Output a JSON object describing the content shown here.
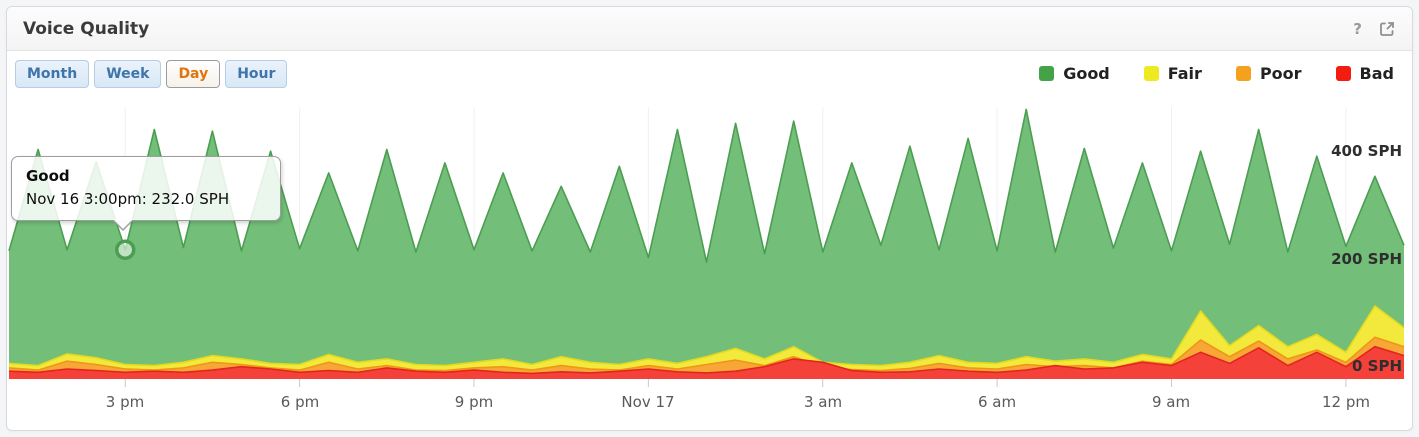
{
  "window": {
    "title": "Voice Quality",
    "help_icon": "?",
    "export_icon": "open-in-new-window"
  },
  "toolbar": {
    "buttons": [
      {
        "label": "Month",
        "selected": false
      },
      {
        "label": "Week",
        "selected": false
      },
      {
        "label": "Day",
        "selected": true
      },
      {
        "label": "Hour",
        "selected": false
      }
    ]
  },
  "tooltip": {
    "series": "Good",
    "text": "Nov 16 3:00pm: 232.0 SPH"
  },
  "chart_data": {
    "type": "area",
    "title": "Voice Quality",
    "unit": "SPH",
    "x_span": "Nov 16 1:00pm to Nov 17 1:00pm, 30-minute intervals",
    "legend_position": "top-right",
    "grid": "faint vertical lines at 3-hour ticks",
    "xaxis": {
      "labels": [
        "3 pm",
        "6 pm",
        "9 pm",
        "Nov 17",
        "3 am",
        "6 am",
        "9 am",
        "12 pm"
      ],
      "tick_indices": [
        4,
        10,
        16,
        22,
        28,
        34,
        40,
        46
      ]
    },
    "yaxis": {
      "labels": [
        "400 SPH",
        "200 SPH",
        "0 SPH"
      ],
      "values": [
        400,
        200,
        0
      ],
      "min": 0,
      "max": 500
    },
    "marker": {
      "series": "Good",
      "index": 4,
      "value": 232.0,
      "time": "Nov 16 3:00pm"
    },
    "series": [
      {
        "name": "Good",
        "swatch": "#44a248",
        "line": "#4b9e51",
        "fill": "#73bf79",
        "values": [
          230,
          412,
          232,
          390,
          232,
          448,
          236,
          445,
          230,
          409,
          234,
          370,
          230,
          412,
          228,
          388,
          232,
          370,
          230,
          346,
          228,
          382,
          218,
          448,
          210,
          459,
          225,
          463,
          228,
          388,
          240,
          418,
          232,
          432,
          230,
          484,
          228,
          414,
          235,
          388,
          230,
          409,
          242,
          448,
          228,
          400,
          238,
          364,
          240
        ]
      },
      {
        "name": "Fair",
        "swatch": "#efe920",
        "line": "#e3da1d",
        "fill": "#f3e93c",
        "values": [
          28,
          24,
          45,
          38,
          26,
          24,
          30,
          42,
          36,
          28,
          26,
          44,
          30,
          36,
          26,
          24,
          30,
          36,
          26,
          40,
          30,
          26,
          36,
          28,
          40,
          55,
          36,
          58,
          30,
          26,
          24,
          30,
          42,
          30,
          28,
          40,
          32,
          36,
          30,
          44,
          36,
          122,
          60,
          96,
          58,
          80,
          48,
          131,
          92
        ]
      },
      {
        "name": "Poor",
        "swatch": "#f5a11d",
        "line": "#ef9617",
        "fill": "#f7a637",
        "values": [
          20,
          16,
          32,
          26,
          18,
          16,
          20,
          30,
          26,
          20,
          16,
          30,
          18,
          24,
          16,
          15,
          20,
          22,
          16,
          24,
          18,
          16,
          24,
          18,
          26,
          34,
          24,
          40,
          22,
          17,
          15,
          19,
          28,
          20,
          18,
          26,
          22,
          24,
          20,
          32,
          26,
          70,
          40,
          68,
          36,
          52,
          30,
          75,
          58
        ]
      },
      {
        "name": "Bad",
        "swatch": "#f21d10",
        "line": "#e0271c",
        "fill": "#f4423a",
        "values": [
          14,
          12,
          18,
          15,
          12,
          14,
          12,
          16,
          22,
          18,
          12,
          15,
          12,
          20,
          14,
          12,
          16,
          12,
          10,
          13,
          11,
          14,
          18,
          13,
          11,
          14,
          22,
          36,
          30,
          15,
          12,
          13,
          18,
          14,
          12,
          16,
          24,
          18,
          20,
          30,
          24,
          48,
          28,
          56,
          24,
          48,
          22,
          58,
          42
        ]
      }
    ]
  }
}
